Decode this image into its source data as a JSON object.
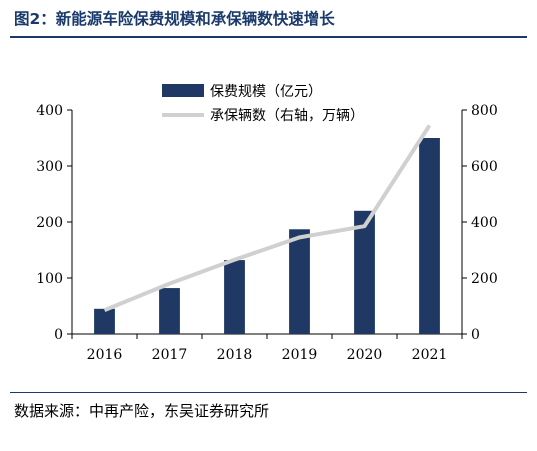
{
  "header": {
    "figure_title": "图2：新能源车险保费规模和承保辆数快速增长"
  },
  "footer": {
    "source": "数据来源：中再产险，东吴证券研究所"
  },
  "colors": {
    "title": "#1a3a6b",
    "bar": "#1f3864",
    "line": "#d0d0d0",
    "axis": "#000000"
  },
  "chart_data": {
    "type": "bar",
    "categories": [
      "2016",
      "2017",
      "2018",
      "2019",
      "2020",
      "2021"
    ],
    "series": [
      {
        "name": "保费规模（亿元）",
        "type": "bar",
        "axis": "left",
        "values": [
          45,
          82,
          132,
          187,
          220,
          350
        ]
      },
      {
        "name": "承保辆数（右轴，万辆）",
        "type": "line",
        "axis": "right",
        "values": [
          85,
          180,
          265,
          345,
          385,
          745
        ]
      }
    ],
    "y_left": {
      "ylim": [
        0,
        400
      ],
      "ticks": [
        "0",
        "100",
        "200",
        "300",
        "400"
      ]
    },
    "y_right": {
      "ylim": [
        0,
        800
      ],
      "ticks": [
        "0",
        "200",
        "400",
        "600",
        "800"
      ]
    },
    "grid": false,
    "legend": "top-center"
  }
}
